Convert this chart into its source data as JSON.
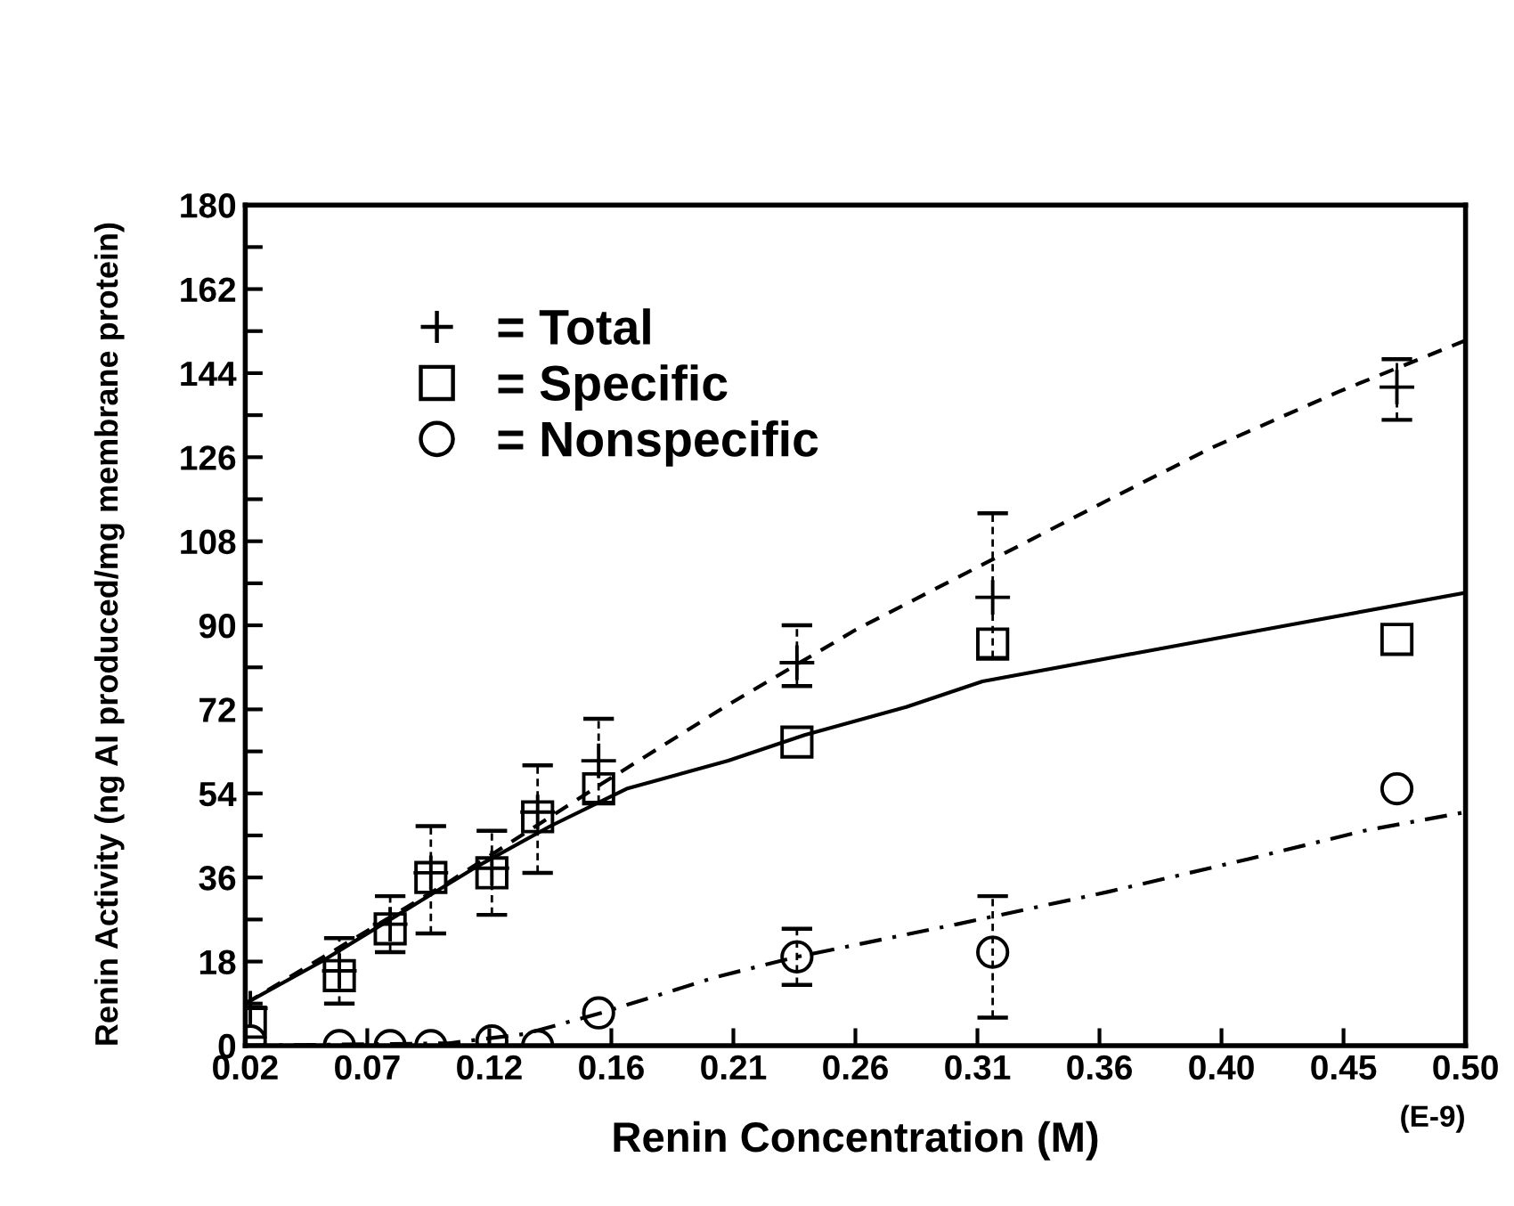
{
  "chart_data": {
    "type": "scatter",
    "xlabel": "Renin Concentration (M)",
    "ylabel": "Renin Activity (ng AI produced/mg membrane protein)",
    "xlim": [
      0.02,
      0.5
    ],
    "ylim": [
      0,
      180
    ],
    "xticks": [
      {
        "value": 0.02,
        "label": "0.02"
      },
      {
        "value": 0.068,
        "label": "0.07"
      },
      {
        "value": 0.116,
        "label": "0.12"
      },
      {
        "value": 0.164,
        "label": "0.16"
      },
      {
        "value": 0.212,
        "label": "0.21"
      },
      {
        "value": 0.26,
        "label": "0.26"
      },
      {
        "value": 0.308,
        "label": "0.31"
      },
      {
        "value": 0.356,
        "label": "0.36"
      },
      {
        "value": 0.404,
        "label": "0.40"
      },
      {
        "value": 0.452,
        "label": "0.45"
      },
      {
        "value": 0.5,
        "label": "0.50"
      }
    ],
    "yticks": [
      0,
      {
        "value": 9,
        "label": null
      },
      18,
      {
        "value": 27,
        "label": null
      },
      36,
      {
        "value": 45,
        "label": null
      },
      54,
      {
        "value": 63,
        "label": null
      },
      72,
      {
        "value": 81,
        "label": null
      },
      90,
      {
        "value": 99,
        "label": null
      },
      108,
      {
        "value": 117,
        "label": null
      },
      126,
      {
        "value": 135,
        "label": null
      },
      144,
      {
        "value": 153,
        "label": null
      },
      162,
      {
        "value": 171,
        "label": null
      },
      180
    ],
    "annotations": [
      "(E-9)"
    ],
    "legend": "top left",
    "grid": false,
    "series": [
      {
        "name": "= Total",
        "marker": "cross",
        "color": "#000000",
        "x": [
          0.022,
          0.057,
          0.077,
          0.093,
          0.117,
          0.135,
          0.159,
          0.237,
          0.314,
          0.473
        ],
        "values": [
          8,
          16,
          26,
          37,
          38,
          50,
          61,
          82,
          96,
          141
        ],
        "errors": [
          null,
          [
            9,
            23
          ],
          [
            20,
            32
          ],
          [
            24,
            47
          ],
          [
            28,
            46
          ],
          [
            37,
            60
          ],
          [
            52,
            70
          ],
          [
            77,
            90
          ],
          [
            83,
            114
          ],
          [
            134,
            147
          ]
        ]
      },
      {
        "name": "= Specific",
        "marker": "square",
        "color": "#000000",
        "x": [
          0.022,
          0.057,
          0.077,
          0.093,
          0.117,
          0.135,
          0.159,
          0.237,
          0.314,
          0.473
        ],
        "values": [
          5,
          15,
          25,
          36,
          37,
          49,
          55,
          65,
          86,
          87
        ]
      },
      {
        "name": "= Nonspecific",
        "marker": "circle",
        "color": "#000000",
        "x": [
          0.022,
          0.057,
          0.077,
          0.093,
          0.117,
          0.135,
          0.159,
          0.237,
          0.314,
          0.473
        ],
        "values": [
          1,
          0,
          0,
          0,
          1,
          0,
          7,
          19,
          20,
          55
        ],
        "errors": [
          null,
          null,
          null,
          null,
          null,
          null,
          null,
          [
            13,
            25
          ],
          [
            6,
            32
          ],
          null
        ]
      },
      {
        "type": "line",
        "line_style": "dashed",
        "color": "#000000",
        "x": [
          0.02,
          0.1,
          0.16,
          0.21,
          0.26,
          0.31,
          0.36,
          0.4,
          0.45,
          0.5
        ],
        "values": [
          9,
          35,
          56,
          73,
          89,
          103,
          117,
          128,
          140,
          151
        ]
      },
      {
        "type": "line",
        "line_style": "solid",
        "color": "#000000",
        "x": [
          0.02,
          0.05,
          0.08,
          0.11,
          0.14,
          0.17,
          0.21,
          0.24,
          0.28,
          0.31,
          0.37,
          0.43,
          0.5
        ],
        "values": [
          9,
          18,
          28,
          38,
          47,
          55,
          61,
          66.5,
          72.5,
          78,
          84,
          90,
          97
        ]
      },
      {
        "type": "line",
        "line_style": "dashdot",
        "color": "#000000",
        "x": [
          0.02,
          0.1,
          0.13,
          0.16,
          0.206,
          0.237,
          0.3,
          0.36,
          0.415,
          0.46,
          0.5
        ],
        "values": [
          0,
          0.5,
          2.5,
          7,
          14.8,
          19,
          26,
          33,
          40,
          46,
          50
        ]
      }
    ]
  }
}
